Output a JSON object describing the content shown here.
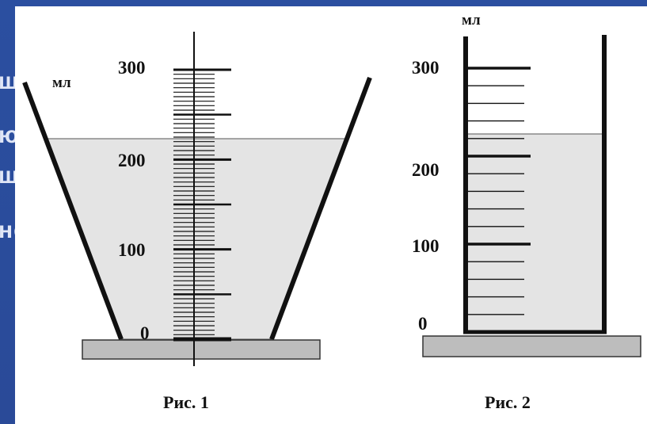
{
  "background_fragments": [
    "ш",
    "ю",
    "ш",
    "не"
  ],
  "figure1": {
    "unit": "мл",
    "ticks": [
      "300",
      "200",
      "100",
      "0"
    ],
    "caption": "Рис. 1"
  },
  "figure2": {
    "unit": "мл",
    "ticks": [
      "300",
      "200",
      "100",
      "0"
    ],
    "caption": "Рис. 2"
  },
  "colors": {
    "slide_background": "#2b4fa0",
    "liquid": "#e4e4e4",
    "stand": "#bdbdbd"
  }
}
